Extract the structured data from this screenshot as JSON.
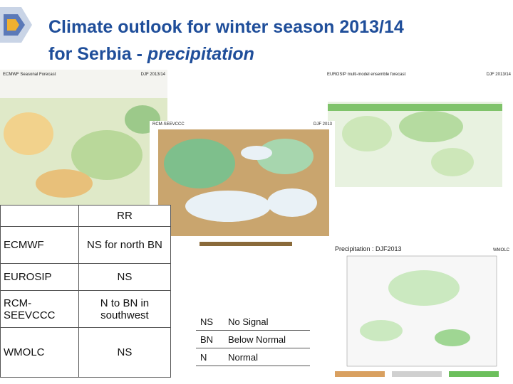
{
  "header": {
    "title_line1": "Climate outlook for winter season 2013/14",
    "title_line2": "for Serbia - ",
    "title_emphasis": "precipitation"
  },
  "maps": [
    {
      "title": "ECMWF Seasonal Forecast",
      "subtitle": "DJF 2013/14"
    },
    {
      "title": "RCM-SEEVCCC",
      "subtitle": "DJF 2013"
    },
    {
      "title": "EUROSIP multi-model ensemble forecast",
      "subtitle": "DJF 2013/14"
    },
    {
      "title": "Precipitation : DJF2013",
      "subtitle": "WMOLC"
    }
  ],
  "table": {
    "header": "RR",
    "rows": [
      [
        "ECMWF",
        "NS for north BN"
      ],
      [
        "EUROSIP",
        "NS"
      ],
      [
        "RCM-SEEVCCC",
        "N to BN in southwest"
      ],
      [
        "WMOLC",
        "NS"
      ]
    ]
  },
  "legend": {
    "rows": [
      [
        "NS",
        "No Signal"
      ],
      [
        "BN",
        "Below Normal"
      ],
      [
        "N",
        "Normal"
      ]
    ]
  }
}
